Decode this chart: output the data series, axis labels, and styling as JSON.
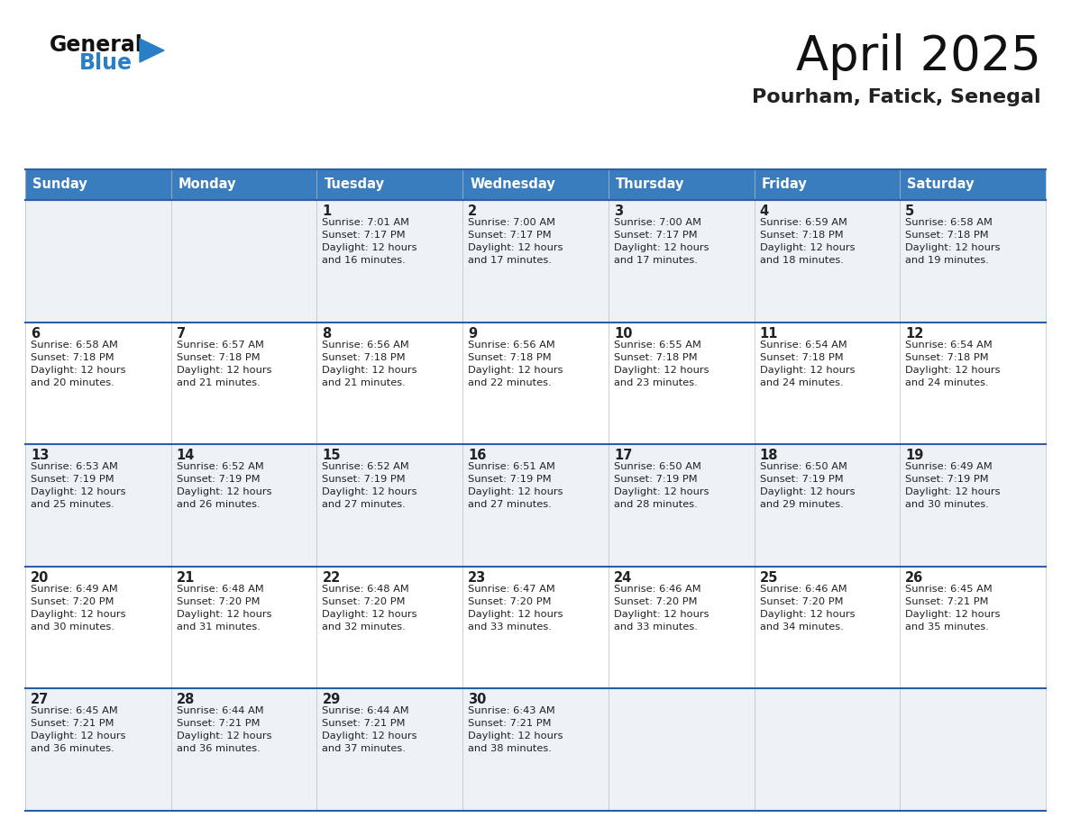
{
  "title": "April 2025",
  "subtitle": "Pourham, Fatick, Senegal",
  "days_of_week": [
    "Sunday",
    "Monday",
    "Tuesday",
    "Wednesday",
    "Thursday",
    "Friday",
    "Saturday"
  ],
  "header_bg": "#3a7dbf",
  "header_text": "#ffffff",
  "cell_bg_odd": "#edf2f7",
  "cell_bg_even": "#ffffff",
  "border_color": "#2a5fa5",
  "text_color": "#222222",
  "logo_black": "#111111",
  "logo_blue": "#2a7ec8",
  "calendar": [
    [
      {
        "day": "",
        "sunrise": "",
        "sunset": "",
        "daylight": ""
      },
      {
        "day": "",
        "sunrise": "",
        "sunset": "",
        "daylight": ""
      },
      {
        "day": "1",
        "sunrise": "Sunrise: 7:01 AM",
        "sunset": "Sunset: 7:17 PM",
        "daylight": "Daylight: 12 hours\nand 16 minutes."
      },
      {
        "day": "2",
        "sunrise": "Sunrise: 7:00 AM",
        "sunset": "Sunset: 7:17 PM",
        "daylight": "Daylight: 12 hours\nand 17 minutes."
      },
      {
        "day": "3",
        "sunrise": "Sunrise: 7:00 AM",
        "sunset": "Sunset: 7:17 PM",
        "daylight": "Daylight: 12 hours\nand 17 minutes."
      },
      {
        "day": "4",
        "sunrise": "Sunrise: 6:59 AM",
        "sunset": "Sunset: 7:18 PM",
        "daylight": "Daylight: 12 hours\nand 18 minutes."
      },
      {
        "day": "5",
        "sunrise": "Sunrise: 6:58 AM",
        "sunset": "Sunset: 7:18 PM",
        "daylight": "Daylight: 12 hours\nand 19 minutes."
      }
    ],
    [
      {
        "day": "6",
        "sunrise": "Sunrise: 6:58 AM",
        "sunset": "Sunset: 7:18 PM",
        "daylight": "Daylight: 12 hours\nand 20 minutes."
      },
      {
        "day": "7",
        "sunrise": "Sunrise: 6:57 AM",
        "sunset": "Sunset: 7:18 PM",
        "daylight": "Daylight: 12 hours\nand 21 minutes."
      },
      {
        "day": "8",
        "sunrise": "Sunrise: 6:56 AM",
        "sunset": "Sunset: 7:18 PM",
        "daylight": "Daylight: 12 hours\nand 21 minutes."
      },
      {
        "day": "9",
        "sunrise": "Sunrise: 6:56 AM",
        "sunset": "Sunset: 7:18 PM",
        "daylight": "Daylight: 12 hours\nand 22 minutes."
      },
      {
        "day": "10",
        "sunrise": "Sunrise: 6:55 AM",
        "sunset": "Sunset: 7:18 PM",
        "daylight": "Daylight: 12 hours\nand 23 minutes."
      },
      {
        "day": "11",
        "sunrise": "Sunrise: 6:54 AM",
        "sunset": "Sunset: 7:18 PM",
        "daylight": "Daylight: 12 hours\nand 24 minutes."
      },
      {
        "day": "12",
        "sunrise": "Sunrise: 6:54 AM",
        "sunset": "Sunset: 7:18 PM",
        "daylight": "Daylight: 12 hours\nand 24 minutes."
      }
    ],
    [
      {
        "day": "13",
        "sunrise": "Sunrise: 6:53 AM",
        "sunset": "Sunset: 7:19 PM",
        "daylight": "Daylight: 12 hours\nand 25 minutes."
      },
      {
        "day": "14",
        "sunrise": "Sunrise: 6:52 AM",
        "sunset": "Sunset: 7:19 PM",
        "daylight": "Daylight: 12 hours\nand 26 minutes."
      },
      {
        "day": "15",
        "sunrise": "Sunrise: 6:52 AM",
        "sunset": "Sunset: 7:19 PM",
        "daylight": "Daylight: 12 hours\nand 27 minutes."
      },
      {
        "day": "16",
        "sunrise": "Sunrise: 6:51 AM",
        "sunset": "Sunset: 7:19 PM",
        "daylight": "Daylight: 12 hours\nand 27 minutes."
      },
      {
        "day": "17",
        "sunrise": "Sunrise: 6:50 AM",
        "sunset": "Sunset: 7:19 PM",
        "daylight": "Daylight: 12 hours\nand 28 minutes."
      },
      {
        "day": "18",
        "sunrise": "Sunrise: 6:50 AM",
        "sunset": "Sunset: 7:19 PM",
        "daylight": "Daylight: 12 hours\nand 29 minutes."
      },
      {
        "day": "19",
        "sunrise": "Sunrise: 6:49 AM",
        "sunset": "Sunset: 7:19 PM",
        "daylight": "Daylight: 12 hours\nand 30 minutes."
      }
    ],
    [
      {
        "day": "20",
        "sunrise": "Sunrise: 6:49 AM",
        "sunset": "Sunset: 7:20 PM",
        "daylight": "Daylight: 12 hours\nand 30 minutes."
      },
      {
        "day": "21",
        "sunrise": "Sunrise: 6:48 AM",
        "sunset": "Sunset: 7:20 PM",
        "daylight": "Daylight: 12 hours\nand 31 minutes."
      },
      {
        "day": "22",
        "sunrise": "Sunrise: 6:48 AM",
        "sunset": "Sunset: 7:20 PM",
        "daylight": "Daylight: 12 hours\nand 32 minutes."
      },
      {
        "day": "23",
        "sunrise": "Sunrise: 6:47 AM",
        "sunset": "Sunset: 7:20 PM",
        "daylight": "Daylight: 12 hours\nand 33 minutes."
      },
      {
        "day": "24",
        "sunrise": "Sunrise: 6:46 AM",
        "sunset": "Sunset: 7:20 PM",
        "daylight": "Daylight: 12 hours\nand 33 minutes."
      },
      {
        "day": "25",
        "sunrise": "Sunrise: 6:46 AM",
        "sunset": "Sunset: 7:20 PM",
        "daylight": "Daylight: 12 hours\nand 34 minutes."
      },
      {
        "day": "26",
        "sunrise": "Sunrise: 6:45 AM",
        "sunset": "Sunset: 7:21 PM",
        "daylight": "Daylight: 12 hours\nand 35 minutes."
      }
    ],
    [
      {
        "day": "27",
        "sunrise": "Sunrise: 6:45 AM",
        "sunset": "Sunset: 7:21 PM",
        "daylight": "Daylight: 12 hours\nand 36 minutes."
      },
      {
        "day": "28",
        "sunrise": "Sunrise: 6:44 AM",
        "sunset": "Sunset: 7:21 PM",
        "daylight": "Daylight: 12 hours\nand 36 minutes."
      },
      {
        "day": "29",
        "sunrise": "Sunrise: 6:44 AM",
        "sunset": "Sunset: 7:21 PM",
        "daylight": "Daylight: 12 hours\nand 37 minutes."
      },
      {
        "day": "30",
        "sunrise": "Sunrise: 6:43 AM",
        "sunset": "Sunset: 7:21 PM",
        "daylight": "Daylight: 12 hours\nand 38 minutes."
      },
      {
        "day": "",
        "sunrise": "",
        "sunset": "",
        "daylight": ""
      },
      {
        "day": "",
        "sunrise": "",
        "sunset": "",
        "daylight": ""
      },
      {
        "day": "",
        "sunrise": "",
        "sunset": "",
        "daylight": ""
      }
    ]
  ]
}
